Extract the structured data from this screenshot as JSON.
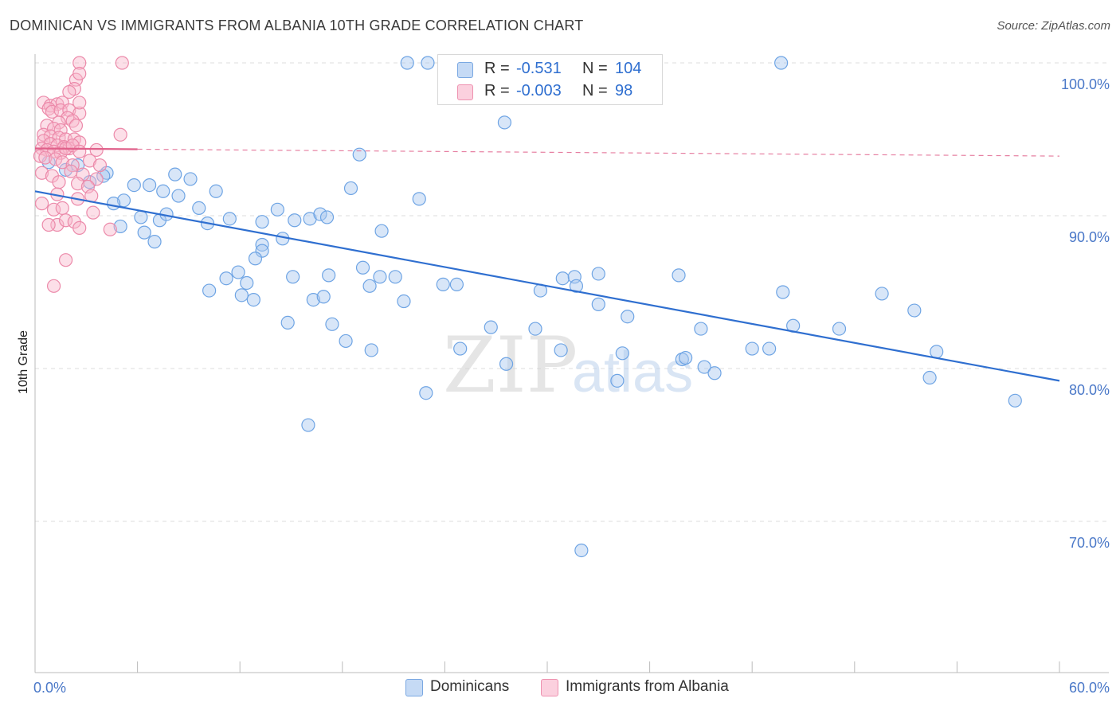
{
  "title": "DOMINICAN VS IMMIGRANTS FROM ALBANIA 10TH GRADE CORRELATION CHART",
  "source": "Source: ZipAtlas.com",
  "watermark": {
    "zip": "ZIP",
    "atlas": "atlas"
  },
  "legend": {
    "series1": {
      "r_label": "R =",
      "r_value": "-0.531",
      "n_label": "N =",
      "n_value": "104",
      "color": "#a8c8f0"
    },
    "series2": {
      "r_label": "R =",
      "r_value": "-0.003",
      "n_label": "N =",
      "n_value": "98",
      "color": "#f8b8cc"
    }
  },
  "bottom_legend": {
    "series1": "Dominicans",
    "series2": "Immigrants from Albania"
  },
  "chart_data": {
    "type": "scatter",
    "title": "DOMINICAN VS IMMIGRANTS FROM ALBANIA 10TH GRADE CORRELATION CHART",
    "ylabel": "10th Grade",
    "xlabel": "",
    "xlim": [
      0,
      60
    ],
    "ylim": [
      61,
      101.5
    ],
    "x_tick_labels": [
      "0.0%",
      "60.0%"
    ],
    "y_ticks": [
      70,
      80,
      90,
      100
    ],
    "y_tick_labels": [
      "70.0%",
      "80.0%",
      "90.0%",
      "100.0%"
    ],
    "grid": "horizontal-dashed",
    "legend_placement": "top-center",
    "series": [
      {
        "name": "Dominicans",
        "color": "#6ea4e4",
        "fill": "#a8c8f0",
        "trend": {
          "x0": 0,
          "y0": 91.6,
          "x1": 60,
          "y1": 79.2,
          "color": "#2f6fd0"
        },
        "points": [
          [
            21.8,
            100
          ],
          [
            23,
            100
          ],
          [
            32.3,
            100
          ],
          [
            43.7,
            100
          ],
          [
            27.5,
            96.1
          ],
          [
            19,
            94
          ],
          [
            0.8,
            93.5
          ],
          [
            1.8,
            93
          ],
          [
            2.5,
            93.3
          ],
          [
            4.2,
            92.8
          ],
          [
            3.2,
            92.2
          ],
          [
            4,
            92.6
          ],
          [
            5.8,
            92
          ],
          [
            8.2,
            92.7
          ],
          [
            9.1,
            92.4
          ],
          [
            7.5,
            91.6
          ],
          [
            6.7,
            92
          ],
          [
            5.2,
            91
          ],
          [
            8.4,
            91.3
          ],
          [
            10.6,
            91.6
          ],
          [
            18.5,
            91.8
          ],
          [
            22.5,
            91.1
          ],
          [
            4.6,
            90.8
          ],
          [
            6.2,
            89.9
          ],
          [
            7.3,
            89.7
          ],
          [
            7.7,
            90.1
          ],
          [
            9.6,
            90.5
          ],
          [
            10.1,
            89.5
          ],
          [
            11.4,
            89.8
          ],
          [
            13.3,
            89.6
          ],
          [
            14.2,
            90.4
          ],
          [
            15.2,
            89.7
          ],
          [
            16.1,
            89.8
          ],
          [
            16.7,
            90.1
          ],
          [
            17.1,
            89.9
          ],
          [
            5,
            89.3
          ],
          [
            6.4,
            88.9
          ],
          [
            7,
            88.3
          ],
          [
            13.3,
            88.1
          ],
          [
            14.5,
            88.5
          ],
          [
            13.3,
            87.7
          ],
          [
            12.9,
            87.2
          ],
          [
            20.3,
            89
          ],
          [
            19.2,
            86.6
          ],
          [
            20.2,
            86
          ],
          [
            21.1,
            86
          ],
          [
            19.6,
            85.4
          ],
          [
            21.6,
            84.4
          ],
          [
            23.9,
            85.5
          ],
          [
            24.7,
            85.5
          ],
          [
            10.2,
            85.1
          ],
          [
            11.2,
            85.9
          ],
          [
            11.9,
            86.3
          ],
          [
            12.4,
            85.6
          ],
          [
            12.1,
            84.8
          ],
          [
            12.8,
            84.5
          ],
          [
            15.1,
            86
          ],
          [
            16.3,
            84.5
          ],
          [
            16.9,
            84.7
          ],
          [
            17.2,
            86.1
          ],
          [
            14.8,
            83
          ],
          [
            17.4,
            82.9
          ],
          [
            18.2,
            81.8
          ],
          [
            19.7,
            81.2
          ],
          [
            22.9,
            78.4
          ],
          [
            24.9,
            81.3
          ],
          [
            26.7,
            82.7
          ],
          [
            27.6,
            80.3
          ],
          [
            29.3,
            82.6
          ],
          [
            29.6,
            85.1
          ],
          [
            30.8,
            81.2
          ],
          [
            30.9,
            85.9
          ],
          [
            31.6,
            86
          ],
          [
            31.7,
            85.4
          ],
          [
            33,
            84.2
          ],
          [
            33,
            86.2
          ],
          [
            34.1,
            79.2
          ],
          [
            34.4,
            81
          ],
          [
            34.7,
            83.4
          ],
          [
            37.7,
            86.1
          ],
          [
            37.9,
            80.6
          ],
          [
            38.1,
            80.7
          ],
          [
            39,
            82.6
          ],
          [
            39.2,
            80.1
          ],
          [
            39.8,
            79.7
          ],
          [
            42,
            81.3
          ],
          [
            43,
            81.3
          ],
          [
            43.8,
            85
          ],
          [
            44.4,
            82.8
          ],
          [
            47.1,
            82.6
          ],
          [
            49.6,
            84.9
          ],
          [
            51.5,
            83.8
          ],
          [
            52.4,
            79.4
          ],
          [
            52.8,
            81.1
          ],
          [
            57.4,
            77.9
          ],
          [
            16,
            76.3
          ],
          [
            32,
            68.1
          ]
        ]
      },
      {
        "name": "Immigrants from Albania",
        "color": "#ec8aaa",
        "fill": "#f8b8cc",
        "trend": {
          "x0": 0,
          "y0": 94.4,
          "x1": 6,
          "y1": 94.35,
          "ext_x1": 60,
          "ext_y1": 93.9,
          "color": "#e0608a"
        },
        "points": [
          [
            2.6,
            100
          ],
          [
            5.1,
            100
          ],
          [
            2.4,
            98.9
          ],
          [
            2.6,
            99.3
          ],
          [
            2.3,
            98.3
          ],
          [
            2,
            98.1
          ],
          [
            0.5,
            97.4
          ],
          [
            0.9,
            97.2
          ],
          [
            1.3,
            97.3
          ],
          [
            1.6,
            97.4
          ],
          [
            0.8,
            97
          ],
          [
            1,
            96.8
          ],
          [
            1.5,
            96.9
          ],
          [
            2,
            96.9
          ],
          [
            2.6,
            96.7
          ],
          [
            2.6,
            97.4
          ],
          [
            1.9,
            96.4
          ],
          [
            2.2,
            96.2
          ],
          [
            1.4,
            96.1
          ],
          [
            0.7,
            95.9
          ],
          [
            1.1,
            95.7
          ],
          [
            1.5,
            95.6
          ],
          [
            2.4,
            95.9
          ],
          [
            0.5,
            95.3
          ],
          [
            0.9,
            95.2
          ],
          [
            1.4,
            95.1
          ],
          [
            1.8,
            95
          ],
          [
            2.3,
            95
          ],
          [
            5,
            95.3
          ],
          [
            0.5,
            94.9
          ],
          [
            0.9,
            94.7
          ],
          [
            1.3,
            94.6
          ],
          [
            1.7,
            94.5
          ],
          [
            2,
            94.4
          ],
          [
            2.6,
            94.8
          ],
          [
            0.4,
            94.4
          ],
          [
            0.7,
            94.3
          ],
          [
            1.1,
            94.2
          ],
          [
            1.5,
            94.1
          ],
          [
            1.8,
            94.4
          ],
          [
            2.2,
            94.6
          ],
          [
            2.6,
            94.2
          ],
          [
            3.6,
            94.3
          ],
          [
            0.3,
            93.9
          ],
          [
            0.6,
            93.8
          ],
          [
            1.2,
            93.7
          ],
          [
            1.6,
            93.5
          ],
          [
            2.2,
            93.3
          ],
          [
            3.2,
            93.6
          ],
          [
            3.8,
            93.3
          ],
          [
            0.4,
            92.8
          ],
          [
            1,
            92.6
          ],
          [
            2.1,
            92.9
          ],
          [
            2.8,
            92.7
          ],
          [
            3.6,
            92.4
          ],
          [
            1.4,
            92.2
          ],
          [
            2.5,
            92.1
          ],
          [
            3.1,
            91.9
          ],
          [
            1.3,
            91.4
          ],
          [
            2.5,
            91.1
          ],
          [
            3.3,
            91.3
          ],
          [
            0.4,
            90.8
          ],
          [
            1.1,
            90.4
          ],
          [
            1.6,
            90.5
          ],
          [
            3.4,
            90.2
          ],
          [
            1.3,
            89.4
          ],
          [
            0.8,
            89.4
          ],
          [
            1.8,
            89.7
          ],
          [
            2.3,
            89.6
          ],
          [
            2.6,
            89.2
          ],
          [
            4.4,
            89.1
          ],
          [
            1.8,
            87.1
          ],
          [
            1.1,
            85.4
          ]
        ]
      }
    ]
  }
}
